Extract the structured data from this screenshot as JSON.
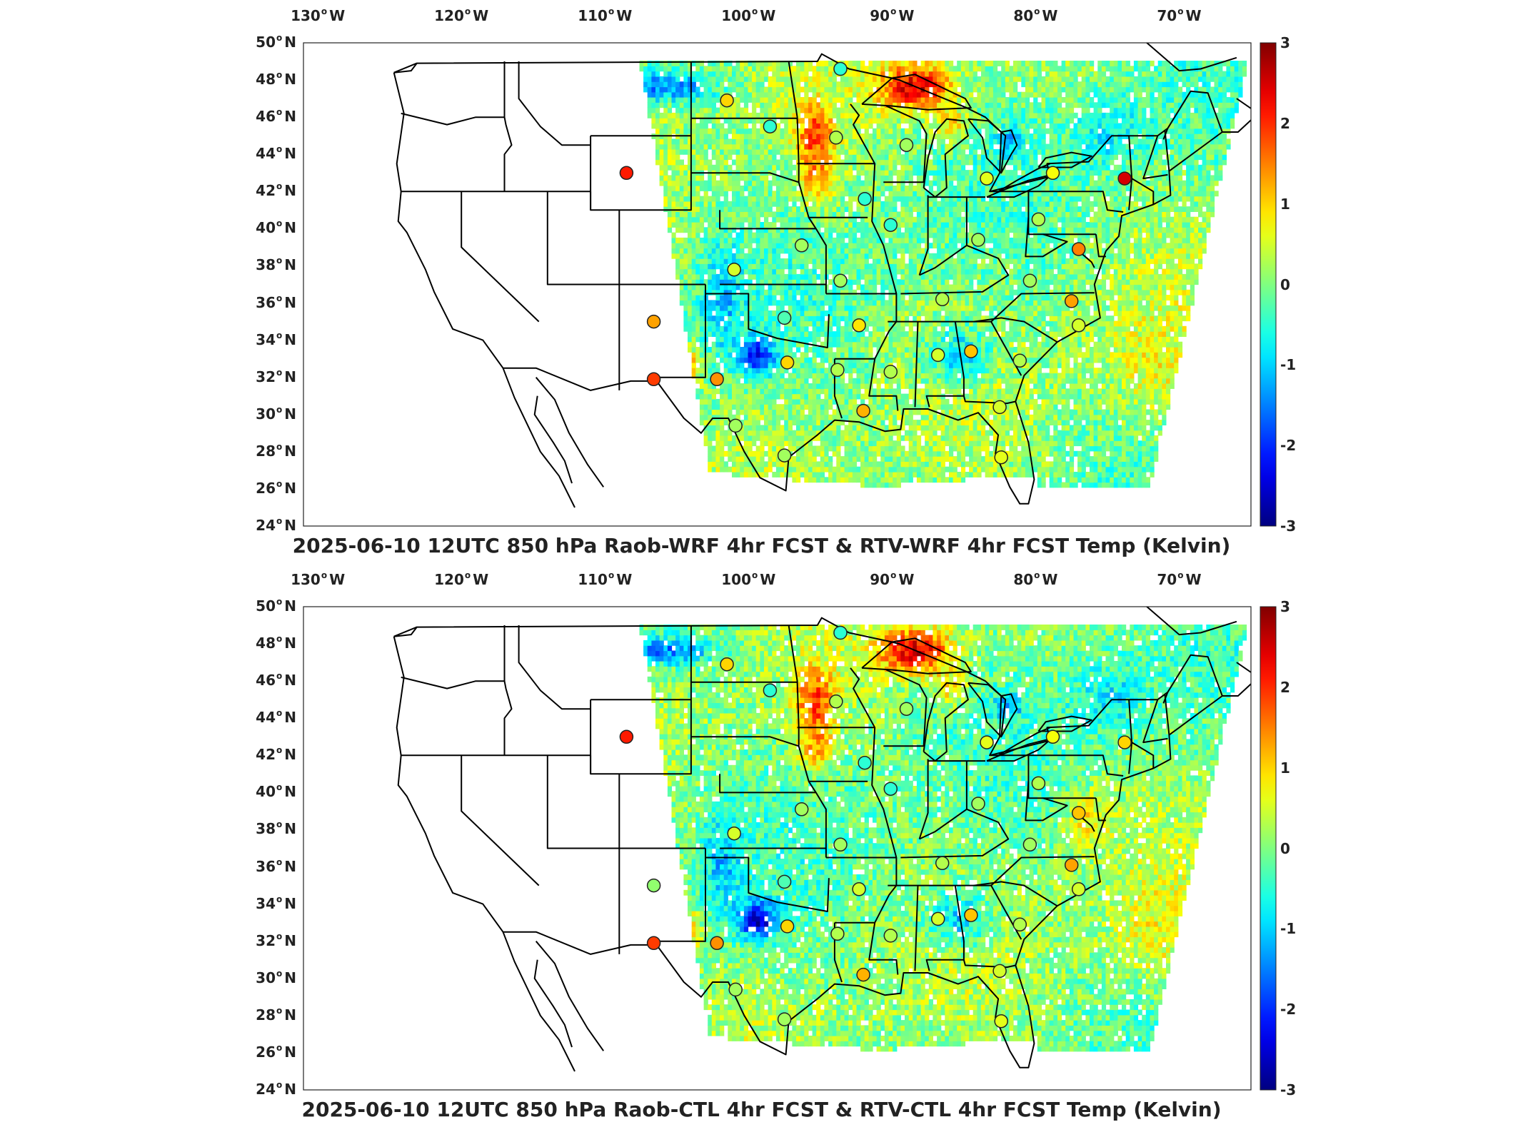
{
  "panels": [
    {
      "title": "2025-06-10 12UTC 850 hPa Raob-WRF 4hr FCST & RTV-WRF 4hr FCST Temp (Kelvin)",
      "stations": [
        {
          "lon": -101.5,
          "lat": 46.9,
          "value": 1.0
        },
        {
          "lon": -98.5,
          "lat": 45.5,
          "value": -0.5
        },
        {
          "lon": -93.6,
          "lat": 48.6,
          "value": -0.5
        },
        {
          "lon": -93.9,
          "lat": 44.9,
          "value": 0.3
        },
        {
          "lon": -89.0,
          "lat": 44.5,
          "value": 0.2
        },
        {
          "lon": -83.4,
          "lat": 42.7,
          "value": 0.6
        },
        {
          "lon": -78.8,
          "lat": 43.0,
          "value": 0.7
        },
        {
          "lon": -73.8,
          "lat": 42.7,
          "value": 2.5
        },
        {
          "lon": -108.5,
          "lat": 43.0,
          "value": 2.1
        },
        {
          "lon": -91.9,
          "lat": 41.6,
          "value": -0.5
        },
        {
          "lon": -90.1,
          "lat": 40.2,
          "value": -0.5
        },
        {
          "lon": -84.0,
          "lat": 39.4,
          "value": 0.2
        },
        {
          "lon": -79.8,
          "lat": 40.5,
          "value": 0.3
        },
        {
          "lon": -77.0,
          "lat": 38.9,
          "value": 1.5
        },
        {
          "lon": -96.3,
          "lat": 39.1,
          "value": 0.2
        },
        {
          "lon": -101.0,
          "lat": 37.8,
          "value": 0.5
        },
        {
          "lon": -93.6,
          "lat": 37.2,
          "value": 0.2
        },
        {
          "lon": -86.5,
          "lat": 36.2,
          "value": 0.3
        },
        {
          "lon": -80.4,
          "lat": 37.2,
          "value": 0.2
        },
        {
          "lon": -77.5,
          "lat": 36.1,
          "value": 1.3
        },
        {
          "lon": -97.5,
          "lat": 35.2,
          "value": -0.3
        },
        {
          "lon": -92.3,
          "lat": 34.8,
          "value": 0.9
        },
        {
          "lon": -77.0,
          "lat": 34.8,
          "value": 0.5
        },
        {
          "lon": -106.6,
          "lat": 35.0,
          "value": 1.3
        },
        {
          "lon": -106.6,
          "lat": 31.9,
          "value": 1.9
        },
        {
          "lon": -102.2,
          "lat": 31.9,
          "value": 1.4
        },
        {
          "lon": -97.3,
          "lat": 32.8,
          "value": 1.0
        },
        {
          "lon": -93.8,
          "lat": 32.4,
          "value": 0.3
        },
        {
          "lon": -90.1,
          "lat": 32.3,
          "value": 0.3
        },
        {
          "lon": -86.8,
          "lat": 33.2,
          "value": 0.5
        },
        {
          "lon": -84.5,
          "lat": 33.4,
          "value": 1.1
        },
        {
          "lon": -81.1,
          "lat": 32.9,
          "value": 0.3
        },
        {
          "lon": -92.0,
          "lat": 30.2,
          "value": 1.2
        },
        {
          "lon": -82.5,
          "lat": 30.4,
          "value": 0.5
        },
        {
          "lon": -100.9,
          "lat": 29.4,
          "value": 0.2
        },
        {
          "lon": -97.5,
          "lat": 27.8,
          "value": 0.2
        },
        {
          "lon": -82.4,
          "lat": 27.7,
          "value": 0.6
        }
      ]
    },
    {
      "title": "2025-06-10 12UTC 850 hPa Raob-CTL 4hr FCST & RTV-CTL 4hr FCST Temp (Kelvin)",
      "stations": [
        {
          "lon": -101.5,
          "lat": 46.9,
          "value": 1.0
        },
        {
          "lon": -98.5,
          "lat": 45.5,
          "value": -0.5
        },
        {
          "lon": -93.6,
          "lat": 48.6,
          "value": -0.5
        },
        {
          "lon": -93.9,
          "lat": 44.9,
          "value": 0.3
        },
        {
          "lon": -89.0,
          "lat": 44.5,
          "value": 0.2
        },
        {
          "lon": -83.4,
          "lat": 42.7,
          "value": 0.6
        },
        {
          "lon": -78.8,
          "lat": 43.0,
          "value": 0.7
        },
        {
          "lon": -73.8,
          "lat": 42.7,
          "value": 1.0
        },
        {
          "lon": -108.5,
          "lat": 43.0,
          "value": 2.1
        },
        {
          "lon": -91.9,
          "lat": 41.6,
          "value": -0.5
        },
        {
          "lon": -90.1,
          "lat": 40.2,
          "value": -0.5
        },
        {
          "lon": -84.0,
          "lat": 39.4,
          "value": 0.2
        },
        {
          "lon": -79.8,
          "lat": 40.5,
          "value": 0.3
        },
        {
          "lon": -77.0,
          "lat": 38.9,
          "value": 1.1
        },
        {
          "lon": -96.3,
          "lat": 39.1,
          "value": 0.2
        },
        {
          "lon": -101.0,
          "lat": 37.8,
          "value": 0.5
        },
        {
          "lon": -93.6,
          "lat": 37.2,
          "value": 0.2
        },
        {
          "lon": -86.5,
          "lat": 36.2,
          "value": 0.3
        },
        {
          "lon": -80.4,
          "lat": 37.2,
          "value": 0.2
        },
        {
          "lon": -77.5,
          "lat": 36.1,
          "value": 1.3
        },
        {
          "lon": -97.5,
          "lat": 35.2,
          "value": -0.3
        },
        {
          "lon": -92.3,
          "lat": 34.8,
          "value": 0.5
        },
        {
          "lon": -77.0,
          "lat": 34.8,
          "value": 0.5
        },
        {
          "lon": -106.6,
          "lat": 35.0,
          "value": 0.1
        },
        {
          "lon": -106.6,
          "lat": 31.9,
          "value": 1.9
        },
        {
          "lon": -102.2,
          "lat": 31.9,
          "value": 1.4
        },
        {
          "lon": -97.3,
          "lat": 32.8,
          "value": 1.0
        },
        {
          "lon": -93.8,
          "lat": 32.4,
          "value": 0.3
        },
        {
          "lon": -90.1,
          "lat": 32.3,
          "value": 0.3
        },
        {
          "lon": -86.8,
          "lat": 33.2,
          "value": 0.5
        },
        {
          "lon": -84.5,
          "lat": 33.4,
          "value": 1.1
        },
        {
          "lon": -81.1,
          "lat": 32.9,
          "value": 0.3
        },
        {
          "lon": -92.0,
          "lat": 30.2,
          "value": 1.2
        },
        {
          "lon": -82.5,
          "lat": 30.4,
          "value": 0.5
        },
        {
          "lon": -100.9,
          "lat": 29.4,
          "value": 0.2
        },
        {
          "lon": -97.5,
          "lat": 27.8,
          "value": 0.2
        },
        {
          "lon": -82.4,
          "lat": 27.7,
          "value": 0.6
        }
      ]
    }
  ],
  "lon_labels": [
    "130",
    "120",
    "110",
    "100",
    "90",
    "80",
    "70"
  ],
  "lon_hemi": "W",
  "lat_labels": [
    "50",
    "48",
    "46",
    "44",
    "42",
    "40",
    "38",
    "36",
    "34",
    "32",
    "30",
    "28",
    "26",
    "24"
  ],
  "lat_hemi": "N",
  "colorbar_labels": [
    "3",
    "2",
    "1",
    "0",
    "-1",
    "-2",
    "-3"
  ],
  "colorbar_range": [
    -3,
    3
  ],
  "colormap": "jet",
  "map_extent": {
    "lon": [
      -131,
      -65
    ],
    "lat": [
      24,
      50
    ]
  }
}
